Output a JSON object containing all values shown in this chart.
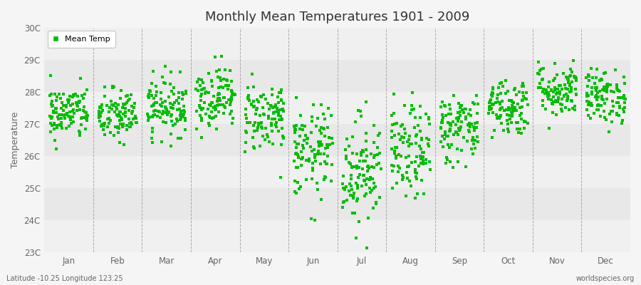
{
  "title": "Monthly Mean Temperatures 1901 - 2009",
  "ylabel": "Temperature",
  "xlabel_bottom_left": "Latitude -10.25 Longitude 123.25",
  "xlabel_bottom_right": "worldspecies.org",
  "marker_color": "#00bb00",
  "marker": "s",
  "marker_size": 2.5,
  "ylim": [
    23,
    30
  ],
  "yticks": [
    23,
    24,
    25,
    26,
    27,
    28,
    29,
    30
  ],
  "ytick_labels": [
    "23C",
    "24C",
    "25C",
    "26C",
    "27C",
    "28C",
    "29C",
    "30C"
  ],
  "months": [
    "Jan",
    "Feb",
    "Mar",
    "Apr",
    "May",
    "Jun",
    "Jul",
    "Aug",
    "Sep",
    "Oct",
    "Nov",
    "Dec"
  ],
  "fig_bg_color": "#f5f5f5",
  "plot_bg_color": "#e8e8e8",
  "band_light_color": "#f0f0f0",
  "grid_color": "#999999",
  "legend_label": "Mean Temp",
  "num_years": 109,
  "seed": 42,
  "monthly_means": [
    27.35,
    27.25,
    27.55,
    27.85,
    27.25,
    26.1,
    25.6,
    26.1,
    26.9,
    27.55,
    28.05,
    27.85
  ],
  "monthly_stds": [
    0.42,
    0.42,
    0.45,
    0.48,
    0.55,
    0.72,
    0.85,
    0.72,
    0.55,
    0.45,
    0.42,
    0.42
  ]
}
